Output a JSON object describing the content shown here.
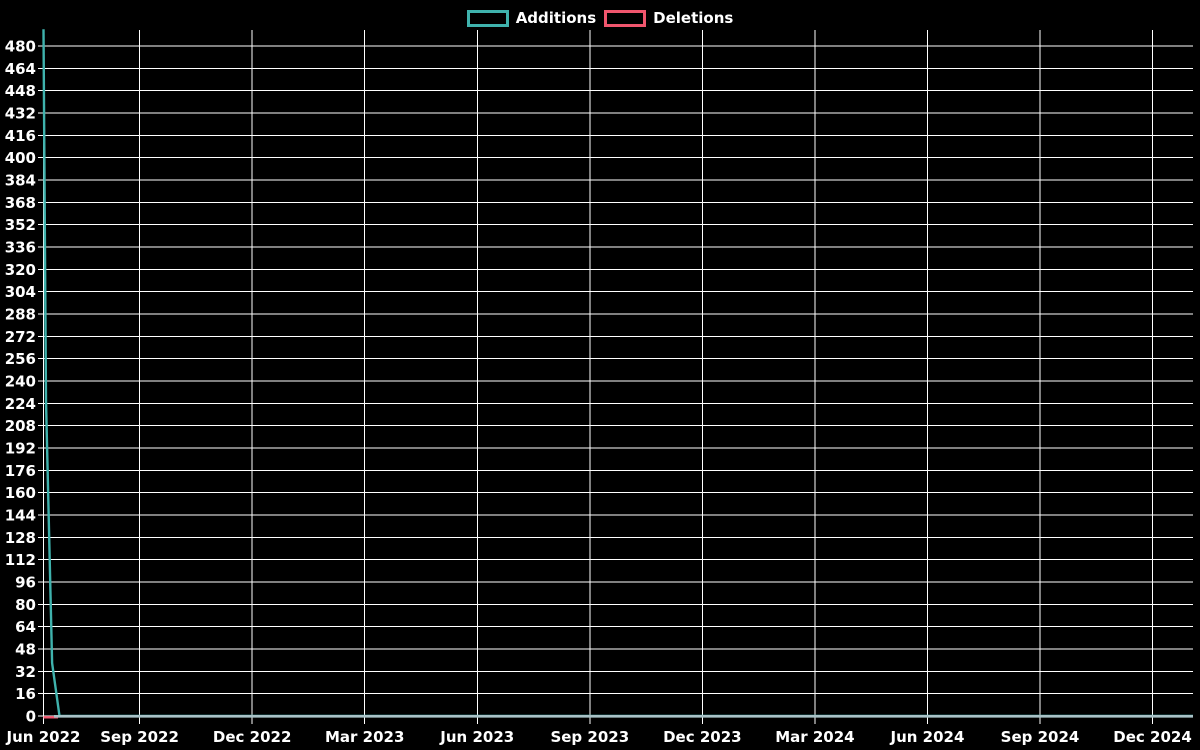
{
  "legend": {
    "items": [
      {
        "label": "Additions",
        "color": "#3FB2AD"
      },
      {
        "label": "Deletions",
        "color": "#F0566E"
      }
    ]
  },
  "chart_data": {
    "type": "line",
    "title": "",
    "legend_position": "top-center",
    "grid": "on",
    "background": "#000000",
    "colors": {
      "grid": "#FFFFFF",
      "text": "#FFFFFF",
      "additions": "#3FB2AD",
      "deletions": "#F0566E",
      "zero_overlap_line": "#A8C2C7"
    },
    "x_axis": {
      "type": "time",
      "range": "mid-June 2022 to early January 2025",
      "span_days": 933,
      "tick_labels": [
        "Jun 2022",
        "Sep 2022",
        "Dec 2022",
        "Mar 2023",
        "Jun 2023",
        "Sep 2023",
        "Dec 2023",
        "Mar 2024",
        "Jun 2024",
        "Sep 2024",
        "Dec 2024"
      ]
    },
    "y_axis": {
      "min": 0,
      "max": 492,
      "step": 16,
      "ticks": [
        0,
        16,
        32,
        48,
        64,
        80,
        96,
        112,
        128,
        144,
        160,
        176,
        192,
        208,
        224,
        240,
        256,
        272,
        288,
        304,
        320,
        336,
        352,
        368,
        384,
        400,
        416,
        432,
        448,
        464,
        480
      ]
    },
    "series": [
      {
        "name": "Additions",
        "color": "#3FB2AD",
        "points": [
          {
            "day": 0,
            "value": 492
          },
          {
            "day": 2,
            "value": 226
          },
          {
            "day": 7,
            "value": 38
          },
          {
            "day": 13,
            "value": 0
          },
          {
            "day": 933,
            "value": 0
          }
        ]
      },
      {
        "name": "Deletions",
        "color": "#F0566E",
        "points": [
          {
            "day": 0,
            "value": 0
          },
          {
            "day": 933,
            "value": 0
          }
        ]
      }
    ]
  }
}
